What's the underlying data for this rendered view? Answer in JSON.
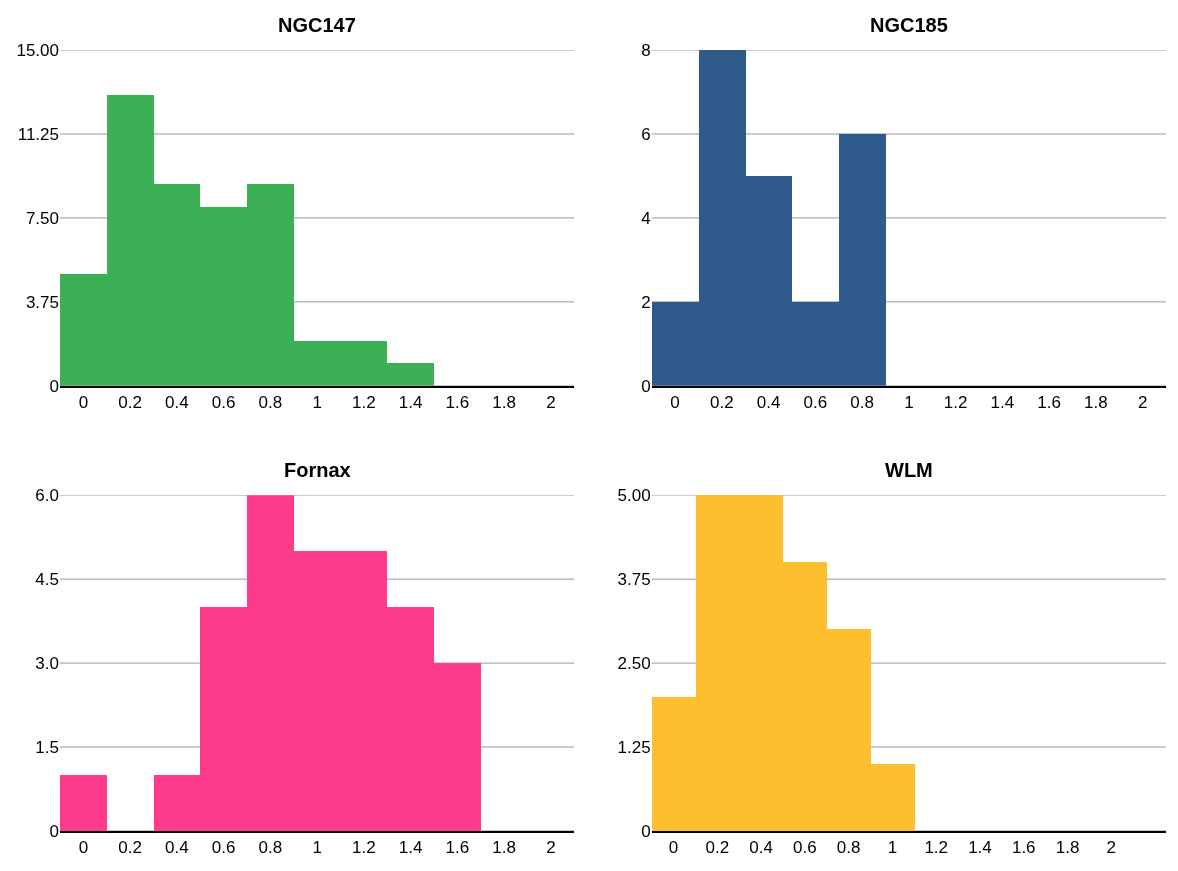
{
  "chart_data": [
    {
      "type": "histogram",
      "title": "NGC147",
      "bins": [
        -0.1,
        0.1,
        0.3,
        0.5,
        0.7,
        0.9,
        1.1,
        1.3,
        1.5,
        1.7,
        1.9,
        2.1
      ],
      "values": [
        5,
        13,
        9,
        8,
        9,
        2,
        2,
        1,
        0,
        0,
        0
      ],
      "color": "#3cb054",
      "xlim": [
        -0.1,
        2.1
      ],
      "xticks": [
        0,
        0.2,
        0.4,
        0.6,
        0.8,
        1,
        1.2,
        1.4,
        1.6,
        1.8,
        2
      ],
      "ylim": [
        0,
        15
      ],
      "yticks": [
        0,
        3.75,
        {
          "value": 7.5,
          "label": "7.50"
        },
        11.25,
        {
          "value": 15,
          "label": "15.00"
        }
      ],
      "grid": "y"
    },
    {
      "type": "histogram",
      "title": "NGC185",
      "bins": [
        -0.1,
        0.1,
        0.3,
        0.5,
        0.7,
        0.9,
        1.1,
        1.3,
        1.5,
        1.7,
        1.9,
        2.1
      ],
      "values": [
        2,
        8,
        5,
        2,
        6,
        0,
        0,
        0,
        0,
        0,
        0
      ],
      "color": "#2e5a8c",
      "xlim": [
        -0.1,
        2.1
      ],
      "xticks": [
        0,
        0.2,
        0.4,
        0.6,
        0.8,
        1,
        1.2,
        1.4,
        1.6,
        1.8,
        2
      ],
      "ylim": [
        0,
        8
      ],
      "yticks": [
        0,
        2,
        4,
        6,
        8
      ],
      "grid": "y"
    },
    {
      "type": "histogram",
      "title": "Fornax",
      "bins": [
        -0.1,
        0.1,
        0.3,
        0.5,
        0.7,
        0.9,
        1.1,
        1.3,
        1.5,
        1.7,
        1.9,
        2.1
      ],
      "values": [
        1,
        0,
        1,
        4,
        6,
        5,
        5,
        4,
        3,
        0,
        0
      ],
      "color": "#fe3a8a",
      "xlim": [
        -0.1,
        2.1
      ],
      "xticks": [
        0,
        0.2,
        0.4,
        0.6,
        0.8,
        1,
        1.2,
        1.4,
        1.6,
        1.8,
        2
      ],
      "ylim": [
        0,
        6
      ],
      "yticks": [
        0,
        1.5,
        {
          "value": 3,
          "label": "3.0"
        },
        4.5,
        {
          "value": 6,
          "label": "6.0"
        }
      ],
      "grid": "y"
    },
    {
      "type": "histogram",
      "title": "WLM",
      "bins": [
        -0.1,
        0.1,
        0.3,
        0.5,
        0.7,
        0.9,
        1.1,
        1.3,
        1.5,
        1.7,
        1.9,
        2.1
      ],
      "values": [
        2,
        5,
        5,
        4,
        3,
        1,
        0,
        0,
        0,
        0,
        0
      ],
      "color": "#fdbf30",
      "xlim": [
        -0.1,
        2.25
      ],
      "xticks": [
        0,
        0.2,
        0.4,
        0.6,
        0.8,
        1,
        1.2,
        1.4,
        1.6,
        1.8,
        2
      ],
      "ylim": [
        0,
        5
      ],
      "yticks": [
        0,
        1.25,
        {
          "value": 2.5,
          "label": "2.50"
        },
        3.75,
        {
          "value": 5,
          "label": "5.00"
        }
      ],
      "grid": "y"
    }
  ]
}
